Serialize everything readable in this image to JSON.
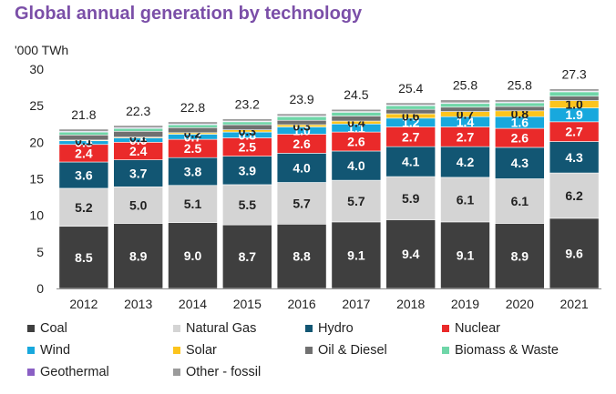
{
  "chart_data": {
    "type": "bar",
    "stacked": true,
    "title": "Global annual generation by technology",
    "ylabel": "'000 TWh",
    "xlabel": "",
    "ylim": [
      0,
      30
    ],
    "yticks": [
      0,
      5,
      10,
      15,
      20,
      25,
      30
    ],
    "grid": false,
    "legend_position": "bottom",
    "categories": [
      "2012",
      "2013",
      "2014",
      "2015",
      "2016",
      "2017",
      "2018",
      "2019",
      "2020",
      "2021"
    ],
    "totals": [
      21.8,
      22.3,
      22.8,
      23.2,
      23.9,
      24.5,
      25.4,
      25.8,
      25.8,
      27.3
    ],
    "series": [
      {
        "name": "Coal",
        "color": "#3f3f3f",
        "label_color": "#ffffff",
        "labeled": true,
        "values": [
          8.5,
          8.9,
          9.0,
          8.7,
          8.8,
          9.1,
          9.4,
          9.1,
          8.9,
          9.6
        ]
      },
      {
        "name": "Natural Gas",
        "color": "#d4d4d4",
        "label_color": "#222222",
        "labeled": true,
        "values": [
          5.2,
          5.0,
          5.1,
          5.5,
          5.7,
          5.7,
          5.9,
          6.1,
          6.1,
          6.2
        ]
      },
      {
        "name": "Hydro",
        "color": "#125673",
        "label_color": "#ffffff",
        "labeled": true,
        "values": [
          3.6,
          3.7,
          3.8,
          3.9,
          4.0,
          4.0,
          4.1,
          4.2,
          4.3,
          4.3
        ]
      },
      {
        "name": "Nuclear",
        "color": "#ea2a2a",
        "label_color": "#ffffff",
        "labeled": true,
        "values": [
          2.4,
          2.4,
          2.5,
          2.5,
          2.6,
          2.6,
          2.7,
          2.7,
          2.6,
          2.7
        ]
      },
      {
        "name": "Wind",
        "color": "#18a8dd",
        "label_color": "#ffffff",
        "labeled": true,
        "values": [
          0.5,
          0.6,
          0.7,
          0.8,
          1.0,
          1.1,
          1.2,
          1.4,
          1.6,
          1.9
        ]
      },
      {
        "name": "Solar",
        "color": "#fcc41d",
        "label_color": "#222222",
        "labeled": true,
        "values": [
          0.1,
          0.1,
          0.2,
          0.3,
          0.3,
          0.4,
          0.6,
          0.7,
          0.8,
          1.0
        ]
      },
      {
        "name": "Oil & Diesel",
        "color": "#707070",
        "label_color": "#ffffff",
        "labeled": false,
        "values": [
          0.7,
          0.8,
          0.7,
          0.7,
          0.6,
          0.7,
          0.6,
          0.6,
          0.6,
          0.6
        ]
      },
      {
        "name": "Biomass & Waste",
        "color": "#6fd6a8",
        "label_color": "#222222",
        "labeled": false,
        "values": [
          0.4,
          0.4,
          0.4,
          0.4,
          0.5,
          0.5,
          0.5,
          0.5,
          0.5,
          0.6
        ]
      },
      {
        "name": "Geothermal",
        "color": "#8a5fc4",
        "label_color": "#ffffff",
        "labeled": false,
        "values": [
          0.1,
          0.1,
          0.1,
          0.1,
          0.1,
          0.1,
          0.1,
          0.1,
          0.1,
          0.1
        ]
      },
      {
        "name": "Other - fossil",
        "color": "#9b9b9b",
        "label_color": "#222222",
        "labeled": false,
        "values": [
          0.3,
          0.3,
          0.3,
          0.3,
          0.3,
          0.3,
          0.3,
          0.4,
          0.3,
          0.3
        ]
      }
    ]
  }
}
